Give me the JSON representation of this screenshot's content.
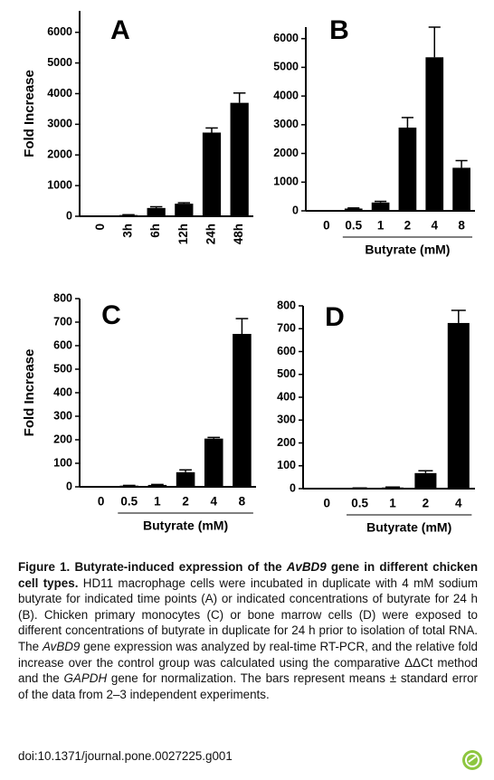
{
  "chart_data": [
    {
      "type": "bar",
      "panel_label": "A",
      "ylabel": "Fold Increase",
      "categories": [
        "0",
        "3h",
        "6h",
        "12h",
        "24h",
        "48h"
      ],
      "values": [
        5,
        40,
        270,
        410,
        2730,
        3700
      ],
      "errors": [
        null,
        10,
        40,
        30,
        150,
        320
      ],
      "ylim": [
        0,
        6700
      ],
      "yticks": [
        0,
        1000,
        2000,
        3000,
        4000,
        5000,
        6000
      ],
      "color": "#000000",
      "xtick_rotation": 90
    },
    {
      "type": "bar",
      "panel_label": "B",
      "xlabel": "Butyrate (mM)",
      "categories": [
        "0",
        "0.5",
        "1",
        "2",
        "4",
        "8"
      ],
      "values": [
        10,
        80,
        290,
        2900,
        5350,
        1500
      ],
      "errors": [
        null,
        20,
        40,
        350,
        1050,
        250
      ],
      "ylim": [
        0,
        6400
      ],
      "yticks": [
        0,
        1000,
        2000,
        3000,
        4000,
        5000,
        6000
      ],
      "color": "#000000",
      "xtick_rotation": 0
    },
    {
      "type": "bar",
      "panel_label": "C",
      "ylabel": "Fold Increase",
      "xlabel": "Butyrate (mM)",
      "categories": [
        "0",
        "0.5",
        "1",
        "2",
        "4",
        "8"
      ],
      "values": [
        2,
        5,
        8,
        62,
        205,
        650
      ],
      "errors": [
        null,
        1,
        2,
        10,
        5,
        65
      ],
      "ylim": [
        0,
        800
      ],
      "yticks": [
        0,
        100,
        200,
        300,
        400,
        500,
        600,
        700,
        800
      ],
      "color": "#000000",
      "xtick_rotation": 0
    },
    {
      "type": "bar",
      "panel_label": "D",
      "xlabel": "Butyrate (mM)",
      "categories": [
        "0",
        "0.5",
        "1",
        "2",
        "4"
      ],
      "values": [
        1,
        2,
        5,
        68,
        725
      ],
      "errors": [
        null,
        1,
        2,
        10,
        55
      ],
      "ylim": [
        0,
        800
      ],
      "yticks": [
        0,
        100,
        200,
        300,
        400,
        500,
        600,
        700,
        800
      ],
      "color": "#000000",
      "xtick_rotation": 0
    }
  ],
  "caption": {
    "runs": [
      {
        "text": "Figure 1. Butyrate-induced expression of the ",
        "style": "bold"
      },
      {
        "text": "AvBD9",
        "style": "bold-italic"
      },
      {
        "text": " gene in different chicken cell types.",
        "style": "bold"
      },
      {
        "text": " HD11 macrophage cells were incubated in duplicate with 4 mM sodium butyrate for indicated time points (A) or indicated concentrations of butyrate for 24 h (B). Chicken primary monocytes (C) or bone marrow cells (D) were exposed to different concentrations of butyrate in duplicate for 24 h prior to isolation of total RNA. The ",
        "style": "normal"
      },
      {
        "text": "AvBD9",
        "style": "italic"
      },
      {
        "text": " gene expression was analyzed by real-time RT-PCR, and the relative fold increase over the control group was calculated using the comparative ΔΔCt method and the ",
        "style": "normal"
      },
      {
        "text": "GAPDH",
        "style": "italic"
      },
      {
        "text": " gene for normalization. The bars represent means ± standard error of the data from 2–3 independent experiments.",
        "style": "normal"
      }
    ],
    "doi": "doi:10.1371/journal.pone.0027225.g001"
  }
}
